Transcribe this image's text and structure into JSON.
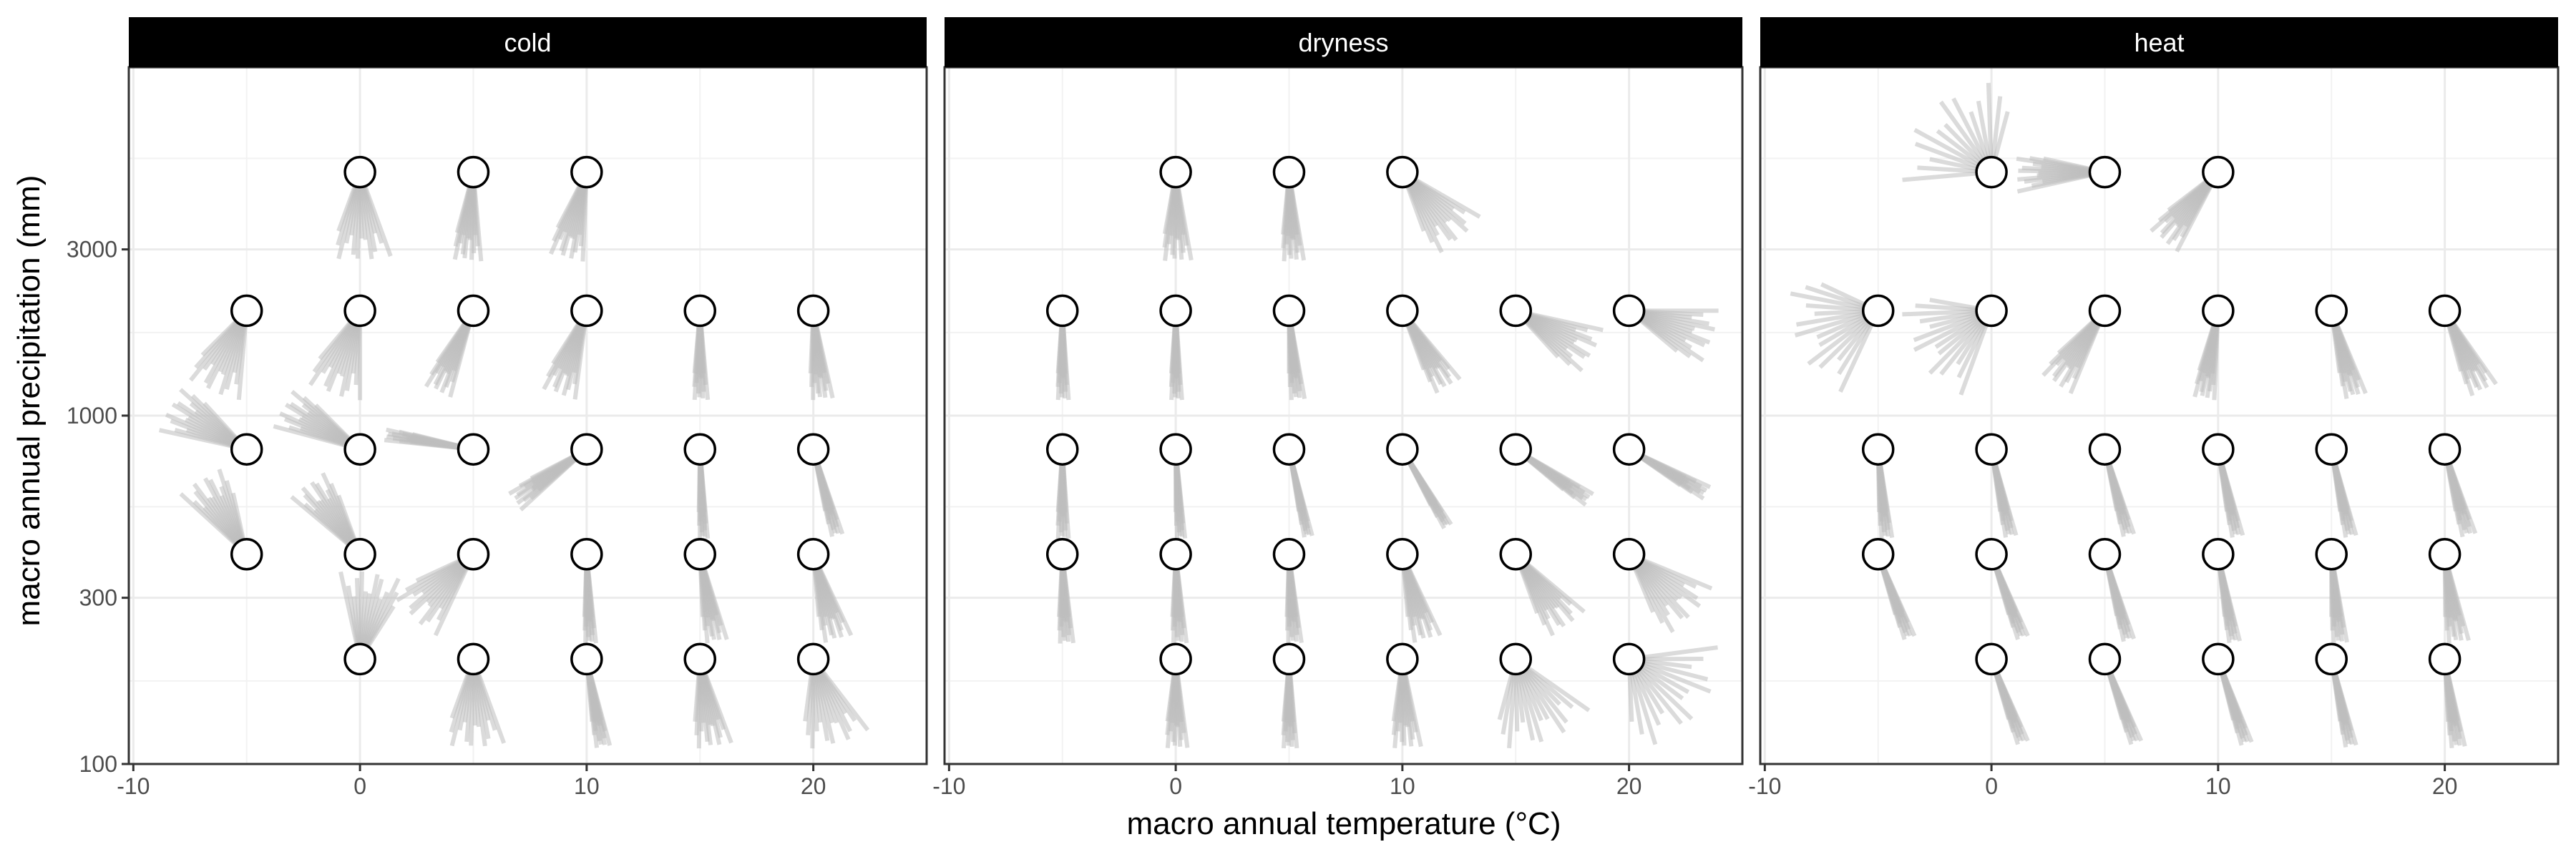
{
  "chart_data": {
    "type": "faceted-vector-field",
    "xlabel": "macro annual temperature (°C)",
    "ylabel": "macro annual precipitation (mm)",
    "x_ticks": [
      -10,
      0,
      10,
      20
    ],
    "x_range": [
      -10.2,
      25
    ],
    "y_scale": "log10",
    "y_ticks": [
      100,
      300,
      1000,
      3000
    ],
    "y_range": [
      100,
      10000
    ],
    "grid": true,
    "colors": {
      "vectors": "#bdbdbd",
      "strip": "#000000",
      "grid": "#ebebeb",
      "marker_fill": "#ffffff",
      "marker_stroke": "#000000"
    },
    "panels": [
      {
        "title": "cold",
        "points": [
          {
            "x": 0,
            "y": 5000,
            "angle": 180,
            "spread": 40,
            "len": 0.48
          },
          {
            "x": 5,
            "y": 5000,
            "angle": 185,
            "spread": 20,
            "len": 0.48
          },
          {
            "x": 10,
            "y": 5000,
            "angle": 195,
            "spread": 25,
            "len": 0.48
          },
          {
            "x": -5,
            "y": 2000,
            "angle": 205,
            "spread": 40,
            "len": 0.48
          },
          {
            "x": 0,
            "y": 2000,
            "angle": 200,
            "spread": 40,
            "len": 0.48
          },
          {
            "x": 5,
            "y": 2000,
            "angle": 205,
            "spread": 20,
            "len": 0.48
          },
          {
            "x": 10,
            "y": 2000,
            "angle": 200,
            "spread": 25,
            "len": 0.48
          },
          {
            "x": 15,
            "y": 2000,
            "angle": 180,
            "spread": 10,
            "len": 0.48
          },
          {
            "x": 20,
            "y": 2000,
            "angle": 175,
            "spread": 15,
            "len": 0.48
          },
          {
            "x": -5,
            "y": 800,
            "angle": 300,
            "spread": 35,
            "len": 0.48
          },
          {
            "x": 0,
            "y": 800,
            "angle": 300,
            "spread": 30,
            "len": 0.48
          },
          {
            "x": 5,
            "y": 800,
            "angle": 280,
            "spread": 8,
            "len": 0.48
          },
          {
            "x": 10,
            "y": 800,
            "angle": 235,
            "spread": 15,
            "len": 0.48
          },
          {
            "x": 15,
            "y": 800,
            "angle": 178,
            "spread": 6,
            "len": 0.48
          },
          {
            "x": 20,
            "y": 800,
            "angle": 165,
            "spread": 8,
            "len": 0.48
          },
          {
            "x": -5,
            "y": 400,
            "angle": 330,
            "spread": 35,
            "len": 0.48
          },
          {
            "x": 0,
            "y": 400,
            "angle": 325,
            "spread": 30,
            "len": 0.48
          },
          {
            "x": 5,
            "y": 400,
            "angle": 225,
            "spread": 40,
            "len": 0.48
          },
          {
            "x": 10,
            "y": 400,
            "angle": 178,
            "spread": 8,
            "len": 0.48
          },
          {
            "x": 15,
            "y": 400,
            "angle": 170,
            "spread": 15,
            "len": 0.48
          },
          {
            "x": 20,
            "y": 400,
            "angle": 165,
            "spread": 20,
            "len": 0.48
          },
          {
            "x": 0,
            "y": 200,
            "angle": 10,
            "spread": 45,
            "len": 0.48
          },
          {
            "x": 5,
            "y": 200,
            "angle": 180,
            "spread": 40,
            "len": 0.48
          },
          {
            "x": 10,
            "y": 200,
            "angle": 170,
            "spread": 10,
            "len": 0.48
          },
          {
            "x": 15,
            "y": 200,
            "angle": 172,
            "spread": 25,
            "len": 0.48
          },
          {
            "x": 20,
            "y": 200,
            "angle": 165,
            "spread": 45,
            "len": 0.48
          }
        ]
      },
      {
        "title": "dryness",
        "points": [
          {
            "x": 0,
            "y": 5000,
            "angle": 180,
            "spread": 20,
            "len": 0.48
          },
          {
            "x": 5,
            "y": 5000,
            "angle": 178,
            "spread": 15,
            "len": 0.48
          },
          {
            "x": 10,
            "y": 5000,
            "angle": 140,
            "spread": 40,
            "len": 0.48
          },
          {
            "x": -5,
            "y": 2000,
            "angle": 180,
            "spread": 8,
            "len": 0.48
          },
          {
            "x": 0,
            "y": 2000,
            "angle": 180,
            "spread": 8,
            "len": 0.48
          },
          {
            "x": 5,
            "y": 2000,
            "angle": 175,
            "spread": 10,
            "len": 0.48
          },
          {
            "x": 10,
            "y": 2000,
            "angle": 150,
            "spread": 20,
            "len": 0.48
          },
          {
            "x": 15,
            "y": 2000,
            "angle": 120,
            "spread": 35,
            "len": 0.48
          },
          {
            "x": 20,
            "y": 2000,
            "angle": 110,
            "spread": 40,
            "len": 0.48
          },
          {
            "x": -5,
            "y": 800,
            "angle": 180,
            "spread": 8,
            "len": 0.48
          },
          {
            "x": 0,
            "y": 800,
            "angle": 177,
            "spread": 6,
            "len": 0.48
          },
          {
            "x": 5,
            "y": 800,
            "angle": 168,
            "spread": 6,
            "len": 0.48
          },
          {
            "x": 10,
            "y": 800,
            "angle": 150,
            "spread": 6,
            "len": 0.48
          },
          {
            "x": 15,
            "y": 800,
            "angle": 125,
            "spread": 10,
            "len": 0.48
          },
          {
            "x": 20,
            "y": 800,
            "angle": 120,
            "spread": 10,
            "len": 0.48
          },
          {
            "x": -5,
            "y": 400,
            "angle": 178,
            "spread": 10,
            "len": 0.48
          },
          {
            "x": 0,
            "y": 400,
            "angle": 178,
            "spread": 10,
            "len": 0.48
          },
          {
            "x": 5,
            "y": 400,
            "angle": 177,
            "spread": 10,
            "len": 0.48
          },
          {
            "x": 10,
            "y": 400,
            "angle": 165,
            "spread": 20,
            "len": 0.48
          },
          {
            "x": 15,
            "y": 400,
            "angle": 145,
            "spread": 30,
            "len": 0.48
          },
          {
            "x": 20,
            "y": 400,
            "angle": 135,
            "spread": 45,
            "len": 0.48
          },
          {
            "x": 0,
            "y": 200,
            "angle": 180,
            "spread": 15,
            "len": 0.48
          },
          {
            "x": 5,
            "y": 200,
            "angle": 180,
            "spread": 10,
            "len": 0.48
          },
          {
            "x": 10,
            "y": 200,
            "angle": 178,
            "spread": 20,
            "len": 0.48
          },
          {
            "x": 15,
            "y": 200,
            "angle": 160,
            "spread": 70,
            "len": 0.48
          },
          {
            "x": 20,
            "y": 200,
            "angle": 130,
            "spread": 95,
            "len": 0.48
          }
        ]
      },
      {
        "title": "heat",
        "points": [
          {
            "x": 0,
            "y": 5000,
            "angle": 320,
            "spread": 110,
            "len": 0.48
          },
          {
            "x": 5,
            "y": 5000,
            "angle": 270,
            "spread": 25,
            "len": 0.48
          },
          {
            "x": 10,
            "y": 5000,
            "angle": 220,
            "spread": 25,
            "len": 0.48
          },
          {
            "x": -5,
            "y": 2000,
            "angle": 250,
            "spread": 90,
            "len": 0.48
          },
          {
            "x": 0,
            "y": 2000,
            "angle": 240,
            "spread": 80,
            "len": 0.48
          },
          {
            "x": 5,
            "y": 2000,
            "angle": 215,
            "spread": 25,
            "len": 0.48
          },
          {
            "x": 10,
            "y": 2000,
            "angle": 190,
            "spread": 15,
            "len": 0.48
          },
          {
            "x": 15,
            "y": 2000,
            "angle": 165,
            "spread": 15,
            "len": 0.48
          },
          {
            "x": 20,
            "y": 2000,
            "angle": 155,
            "spread": 20,
            "len": 0.48
          },
          {
            "x": -5,
            "y": 800,
            "angle": 175,
            "spread": 8,
            "len": 0.48
          },
          {
            "x": 0,
            "y": 800,
            "angle": 168,
            "spread": 8,
            "len": 0.48
          },
          {
            "x": 5,
            "y": 800,
            "angle": 165,
            "spread": 8,
            "len": 0.48
          },
          {
            "x": 10,
            "y": 800,
            "angle": 168,
            "spread": 8,
            "len": 0.48
          },
          {
            "x": 15,
            "y": 800,
            "angle": 168,
            "spread": 8,
            "len": 0.48
          },
          {
            "x": 20,
            "y": 800,
            "angle": 165,
            "spread": 10,
            "len": 0.48
          },
          {
            "x": -5,
            "y": 400,
            "angle": 160,
            "spread": 8,
            "len": 0.48
          },
          {
            "x": 0,
            "y": 400,
            "angle": 160,
            "spread": 8,
            "len": 0.48
          },
          {
            "x": 5,
            "y": 400,
            "angle": 165,
            "spread": 8,
            "len": 0.48
          },
          {
            "x": 10,
            "y": 400,
            "angle": 170,
            "spread": 8,
            "len": 0.48
          },
          {
            "x": 15,
            "y": 400,
            "angle": 175,
            "spread": 10,
            "len": 0.48
          },
          {
            "x": 20,
            "y": 400,
            "angle": 172,
            "spread": 15,
            "len": 0.48
          },
          {
            "x": 0,
            "y": 200,
            "angle": 160,
            "spread": 8,
            "len": 0.48
          },
          {
            "x": 5,
            "y": 200,
            "angle": 160,
            "spread": 8,
            "len": 0.48
          },
          {
            "x": 10,
            "y": 200,
            "angle": 162,
            "spread": 8,
            "len": 0.48
          },
          {
            "x": 15,
            "y": 200,
            "angle": 168,
            "spread": 8,
            "len": 0.48
          },
          {
            "x": 20,
            "y": 200,
            "angle": 172,
            "spread": 10,
            "len": 0.48
          }
        ]
      }
    ]
  }
}
